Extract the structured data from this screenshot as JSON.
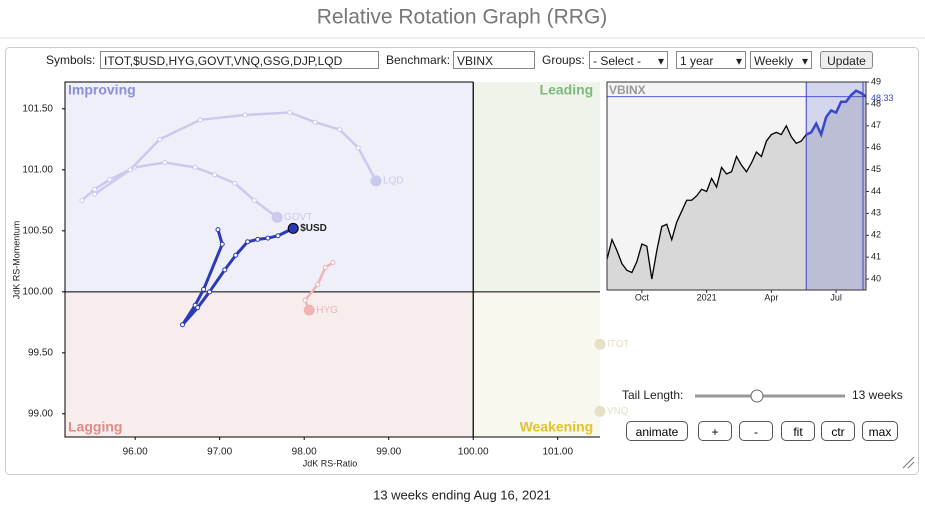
{
  "title": "Relative Rotation Graph (RRG)",
  "controls": {
    "symbols_label": "Symbols:",
    "symbols": "ITOT,$USD,HYG,GOVT,VNQ,GSG,DJP,LQD",
    "benchmark_label": "Benchmark:",
    "benchmark": "VBINX",
    "groups_label": "Groups:",
    "groups": "- Select -",
    "period": "1 year",
    "frequency": "Weekly",
    "update": "Update",
    "tail_length_label": "Tail Length:",
    "tail_length": {
      "value": 13,
      "label": "13 weeks"
    },
    "buttons": [
      "animate",
      "+",
      "-",
      "fit",
      "ctr",
      "max"
    ]
  },
  "chart_data": [
    {
      "type": "rrg",
      "x_label": "JdK RS-Ratio",
      "y_label": "JdK RS-Momentum",
      "xlim": [
        95.17,
        101.5
      ],
      "ylim": [
        98.81,
        101.72
      ],
      "center": [
        100,
        100
      ],
      "xticks": [
        {
          "value": 96,
          "label": "96.00"
        },
        {
          "value": 97,
          "label": "97.00"
        },
        {
          "value": 98,
          "label": "98.00"
        },
        {
          "value": 99,
          "label": "99.00"
        },
        {
          "value": 100,
          "label": "100.00"
        },
        {
          "value": 101,
          "label": "101.00"
        }
      ],
      "yticks": [
        {
          "value": 99,
          "label": "99.00"
        },
        {
          "value": 99.5,
          "label": "99.50"
        },
        {
          "value": 100,
          "label": "100.00"
        },
        {
          "value": 100.5,
          "label": "100.50"
        },
        {
          "value": 101,
          "label": "101.00"
        },
        {
          "value": 101.5,
          "label": "101.50"
        }
      ],
      "quadrants": [
        {
          "label": "Improving",
          "color": "#8a8fd8",
          "fill": "#efeff9"
        },
        {
          "label": "Leading",
          "color": "#7cb97c",
          "fill": "#eff4eb"
        },
        {
          "label": "Lagging",
          "color": "#e08a8a",
          "fill": "#f8eded"
        },
        {
          "label": "Weakening",
          "color": "#e3c22e",
          "fill": "#f8f8ee"
        }
      ],
      "series": [
        {
          "name": "GOVT",
          "color": "#cacaee",
          "x": [
            95.37,
            95.52,
            95.7,
            95.99,
            96.35,
            96.71,
            96.94,
            97.18,
            97.41,
            97.68
          ],
          "y": [
            100.75,
            100.84,
            100.92,
            101.02,
            101.06,
            101.02,
            100.96,
            100.89,
            100.75,
            100.61
          ]
        },
        {
          "name": "LQD",
          "color": "#cacaee",
          "x": [
            95.52,
            95.94,
            96.29,
            96.77,
            97.3,
            97.83,
            98.13,
            98.42,
            98.64,
            98.85
          ],
          "y": [
            100.8,
            101.0,
            101.25,
            101.41,
            101.45,
            101.47,
            101.39,
            101.33,
            101.18,
            100.91
          ]
        },
        {
          "name": "HYG",
          "color": "#f0b4b4",
          "x": [
            98.34,
            98.25,
            98.16,
            98.01,
            98.06
          ],
          "y": [
            100.24,
            100.2,
            100.06,
            99.93,
            99.85
          ]
        },
        {
          "name": "ITOT",
          "color": "#e6e0c6",
          "x": [
            101.5
          ],
          "y": [
            99.57
          ]
        },
        {
          "name": "VNQ",
          "color": "#e6e0c6",
          "x": [
            101.5
          ],
          "y": [
            99.02
          ]
        },
        {
          "name": "$USD",
          "color": "#2b3bb8",
          "x": [
            96.98,
            97.03,
            96.81,
            96.71,
            96.56,
            96.74,
            96.88,
            97.06,
            97.19,
            97.33,
            97.45,
            97.57,
            97.69,
            97.87
          ],
          "y": [
            100.51,
            100.39,
            100.02,
            99.89,
            99.73,
            99.87,
            100.0,
            100.18,
            100.3,
            100.41,
            100.43,
            100.44,
            100.46,
            100.52
          ]
        }
      ]
    },
    {
      "type": "area",
      "title": "VBINX",
      "color": "#000000",
      "highlight_color": "#3a46c8",
      "xlim": [
        0,
        52
      ],
      "xticks": [
        {
          "value": 7,
          "label": "Oct"
        },
        {
          "value": 20,
          "label": "2021"
        },
        {
          "value": 33,
          "label": "Apr"
        },
        {
          "value": 46,
          "label": "Jul"
        }
      ],
      "ylim": [
        39.5,
        49
      ],
      "yticks": [
        40,
        41,
        42,
        43,
        44,
        45,
        46,
        47,
        48,
        49
      ],
      "values": [
        40.9,
        41.8,
        41.3,
        40.7,
        40.4,
        40.3,
        40.8,
        41.6,
        41.5,
        40.0,
        41.3,
        42.4,
        42.5,
        41.8,
        42.6,
        43.1,
        43.6,
        43.6,
        43.8,
        44.1,
        44.0,
        44.6,
        44.2,
        45.1,
        44.8,
        44.9,
        45.6,
        45.2,
        44.9,
        45.3,
        45.8,
        45.6,
        46.3,
        46.6,
        46.7,
        46.6,
        47.0,
        46.5,
        46.2,
        46.3,
        46.6,
        46.7,
        47.1,
        46.6,
        47.4,
        47.7,
        47.6,
        48.1,
        48.1,
        48.4,
        48.6,
        48.5,
        48.33
      ]
    }
  ],
  "footer": "13 weeks ending Aug 16, 2021"
}
